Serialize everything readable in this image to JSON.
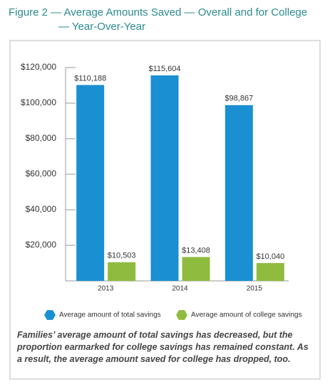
{
  "chart_data": {
    "type": "bar",
    "title": "Figure 2 — Average Amounts Saved — Overall and for College — Year-Over-Year",
    "categories": [
      "2013",
      "2014",
      "2015"
    ],
    "series": [
      {
        "name": "Average amount of total savings",
        "color": "#1a8fd1",
        "values": [
          110188,
          115604,
          98867
        ],
        "value_labels": [
          "$110,188",
          "$115,604",
          "$98,867"
        ]
      },
      {
        "name": "Average amount of college savings",
        "color": "#8fbb3e",
        "values": [
          10503,
          13408,
          10040
        ],
        "value_labels": [
          "$10,503",
          "$13,408",
          "$10,040"
        ]
      }
    ],
    "ylim": [
      0,
      120000
    ],
    "yticks": [
      {
        "value": 20000,
        "label": "$20,000"
      },
      {
        "value": 40000,
        "label": "$40,000"
      },
      {
        "value": 60000,
        "label": "$60,000"
      },
      {
        "value": 80000,
        "label": "$80,000"
      },
      {
        "value": 100000,
        "label": "$100,000"
      },
      {
        "value": 120000,
        "label": "$120,000"
      }
    ],
    "caption": "Families’ average amount of total savings has decreased, but the proportion earmarked for college savings has remained constant. As a result, the average amount saved for college has dropped, too."
  }
}
